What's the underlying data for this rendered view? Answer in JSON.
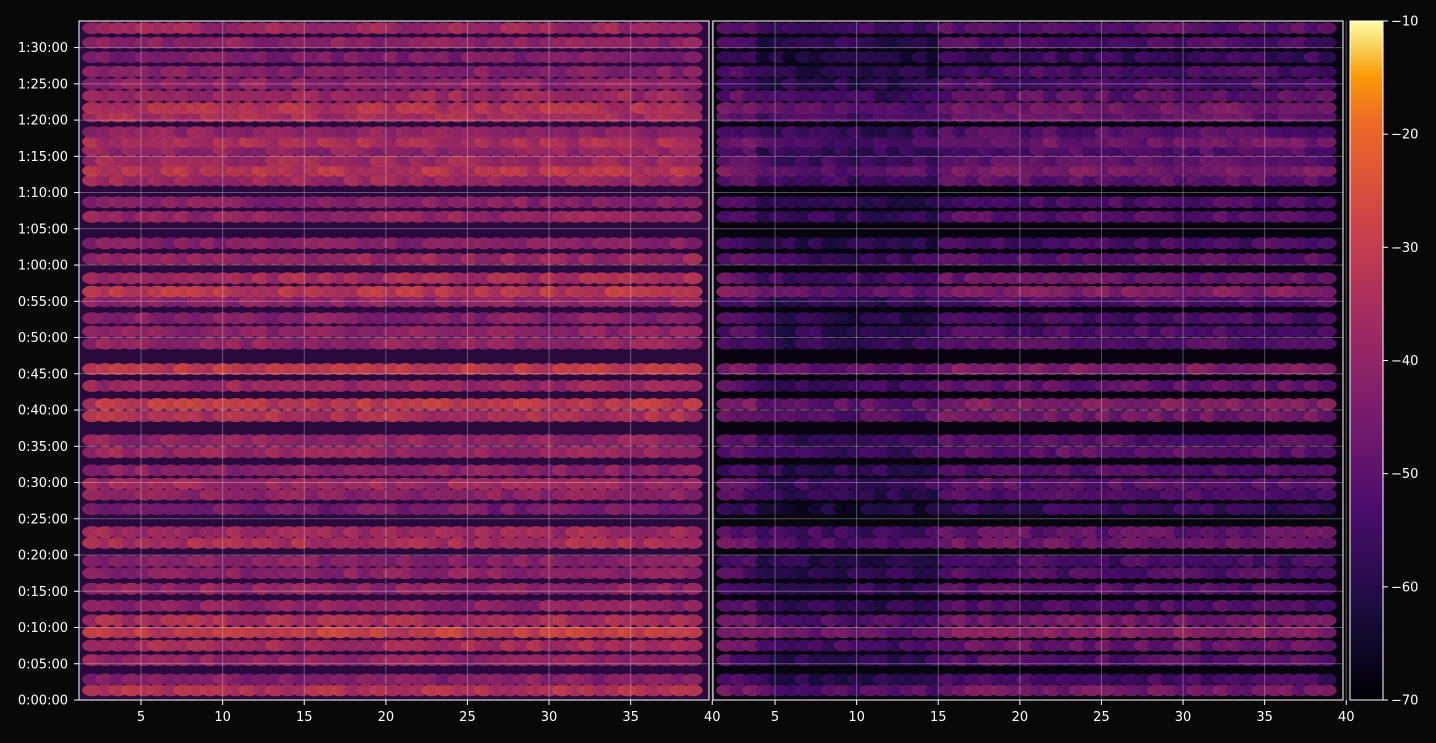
{
  "chart_data": {
    "type": "heatmap",
    "title": "",
    "xlabel": "",
    "ylabel": "",
    "panels": [
      {
        "name": "",
        "xlim": [
          1.2,
          39.8
        ],
        "xticks": [
          5,
          10,
          15,
          20,
          25,
          30,
          35,
          40
        ],
        "xtick_labels": [
          "5",
          "10",
          "15",
          "20",
          "25",
          "30",
          "35",
          "40"
        ],
        "mean_level": "high"
      },
      {
        "name": "",
        "xlim": [
          1.2,
          39.8
        ],
        "xticks": [
          5,
          10,
          15,
          20,
          25,
          30,
          35,
          40
        ],
        "xtick_labels": [
          "5",
          "10",
          "15",
          "20",
          "25",
          "30",
          "35",
          "40"
        ],
        "mean_level": "low"
      }
    ],
    "ylim_seconds": [
      0,
      5620
    ],
    "yticks_seconds": [
      0,
      300,
      600,
      900,
      1200,
      1500,
      1800,
      2100,
      2400,
      2700,
      3000,
      3300,
      3600,
      3900,
      4200,
      4500,
      4800,
      5100,
      5400
    ],
    "ytick_labels": [
      "0:00:00",
      "0:05:00",
      "0:10:00",
      "0:15:00",
      "0:20:00",
      "0:25:00",
      "0:30:00",
      "0:35:00",
      "0:40:00",
      "0:45:00",
      "0:50:00",
      "0:55:00",
      "1:00:00",
      "1:05:00",
      "1:10:00",
      "1:15:00",
      "1:20:00",
      "1:25:00",
      "1:30:00"
    ],
    "colorbar": {
      "colormap": "inferno",
      "vmin": -70,
      "vmax": -10,
      "ticks": [
        -70,
        -60,
        -50,
        -40,
        -30,
        -20,
        -10
      ],
      "tick_labels": [
        "−70",
        "−60",
        "−50",
        "−40",
        "−30",
        "−20",
        "−10"
      ]
    },
    "grid": true,
    "row_levels": [
      {
        "y": 80,
        "level": 0.62
      },
      {
        "y": 170,
        "level": 0.48
      },
      {
        "y": 330,
        "level": 0.52
      },
      {
        "y": 450,
        "level": 0.58
      },
      {
        "y": 560,
        "level": 0.68
      },
      {
        "y": 660,
        "level": 0.6
      },
      {
        "y": 780,
        "level": 0.5
      },
      {
        "y": 920,
        "level": 0.52
      },
      {
        "y": 1050,
        "level": 0.5
      },
      {
        "y": 1150,
        "level": 0.48
      },
      {
        "y": 1300,
        "level": 0.6
      },
      {
        "y": 1390,
        "level": 0.56
      },
      {
        "y": 1580,
        "level": 0.42
      },
      {
        "y": 1700,
        "level": 0.5
      },
      {
        "y": 1790,
        "level": 0.55
      },
      {
        "y": 1900,
        "level": 0.5
      },
      {
        "y": 2050,
        "level": 0.55
      },
      {
        "y": 2150,
        "level": 0.52
      },
      {
        "y": 2350,
        "level": 0.62
      },
      {
        "y": 2450,
        "level": 0.66
      },
      {
        "y": 2600,
        "level": 0.55
      },
      {
        "y": 2740,
        "level": 0.66
      },
      {
        "y": 2950,
        "level": 0.52
      },
      {
        "y": 3050,
        "level": 0.5
      },
      {
        "y": 3160,
        "level": 0.48
      },
      {
        "y": 3300,
        "level": 0.5
      },
      {
        "y": 3380,
        "level": 0.66
      },
      {
        "y": 3490,
        "level": 0.58
      },
      {
        "y": 3650,
        "level": 0.54
      },
      {
        "y": 3780,
        "level": 0.48
      },
      {
        "y": 4000,
        "level": 0.52
      },
      {
        "y": 4120,
        "level": 0.48
      },
      {
        "y": 4300,
        "level": 0.55
      },
      {
        "y": 4380,
        "level": 0.64
      },
      {
        "y": 4460,
        "level": 0.56
      },
      {
        "y": 4550,
        "level": 0.52
      },
      {
        "y": 4620,
        "level": 0.6
      },
      {
        "y": 4700,
        "level": 0.52
      },
      {
        "y": 4830,
        "level": 0.58
      },
      {
        "y": 4900,
        "level": 0.62
      },
      {
        "y": 5000,
        "level": 0.55
      },
      {
        "y": 5100,
        "level": 0.5
      },
      {
        "y": 5200,
        "level": 0.48
      },
      {
        "y": 5320,
        "level": 0.44
      },
      {
        "y": 5440,
        "level": 0.5
      },
      {
        "y": 5560,
        "level": 0.55
      }
    ]
  }
}
